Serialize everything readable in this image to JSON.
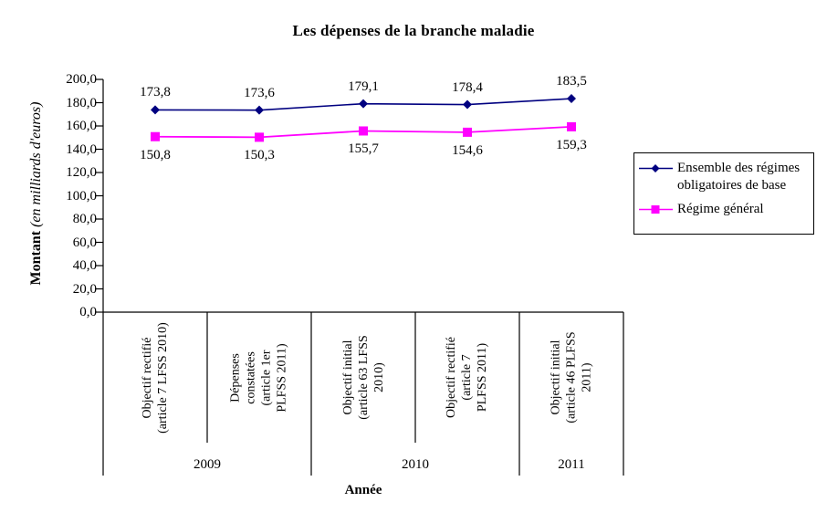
{
  "title": "Les dépenses de la branche maladie",
  "y_axis": {
    "title_main": "Montant",
    "title_units": " (en milliards d'euros)",
    "tick_labels": [
      "0,0",
      "20,0",
      "40,0",
      "60,0",
      "80,0",
      "100,0",
      "120,0",
      "140,0",
      "160,0",
      "180,0",
      "200,0"
    ]
  },
  "x_axis": {
    "title": "Année",
    "year_groups": [
      {
        "label": "2009",
        "span": 2
      },
      {
        "label": "2010",
        "span": 2
      },
      {
        "label": "2011",
        "span": 1
      }
    ]
  },
  "chart_data": {
    "type": "line",
    "title": "Les dépenses de la branche maladie",
    "xlabel": "Année",
    "ylabel": "Montant (en milliards d'euros)",
    "ylim": [
      0,
      200
    ],
    "ytick_step": 20,
    "grid": false,
    "legend_position": "right",
    "categories": [
      "Objectif rectifié (article 7 LFSS 2010)",
      "Dépenses constatées (article 1er PLFSS 2011)",
      "Objectif initial (article 63 LFSS 2010)",
      "Objectif rectifié (article 7 PLFSS 2011)",
      "Objectif initial (article 46 PLFSS 2011)"
    ],
    "category_lines": [
      [
        "Objectif rectifié",
        "(article 7 LFSS 2010)"
      ],
      [
        "Dépenses",
        "constatées",
        "(article 1er",
        "PLFSS 2011)"
      ],
      [
        "Objectif initial",
        "(article 63 LFSS",
        "2010)"
      ],
      [
        "Objectif rectifié",
        "(article 7",
        "PLFSS 2011)"
      ],
      [
        "Objectif initial",
        "(article 46 PLFSS",
        "2011)"
      ]
    ],
    "category_years": [
      "2009",
      "2009",
      "2010",
      "2010",
      "2011"
    ],
    "series": [
      {
        "name": "Ensemble des régimes obligatoires de base",
        "color": "#000080",
        "marker": "diamond",
        "values": [
          173.8,
          173.6,
          179.1,
          178.4,
          183.5
        ],
        "labels": [
          "173,8",
          "173,6",
          "179,1",
          "178,4",
          "183,5"
        ],
        "label_position": "above"
      },
      {
        "name": "Régime général",
        "color": "#FF00FF",
        "marker": "square",
        "values": [
          150.8,
          150.3,
          155.7,
          154.6,
          159.3
        ],
        "labels": [
          "150,8",
          "150,3",
          "155,7",
          "154,6",
          "159,3"
        ],
        "label_position": "below"
      }
    ]
  }
}
